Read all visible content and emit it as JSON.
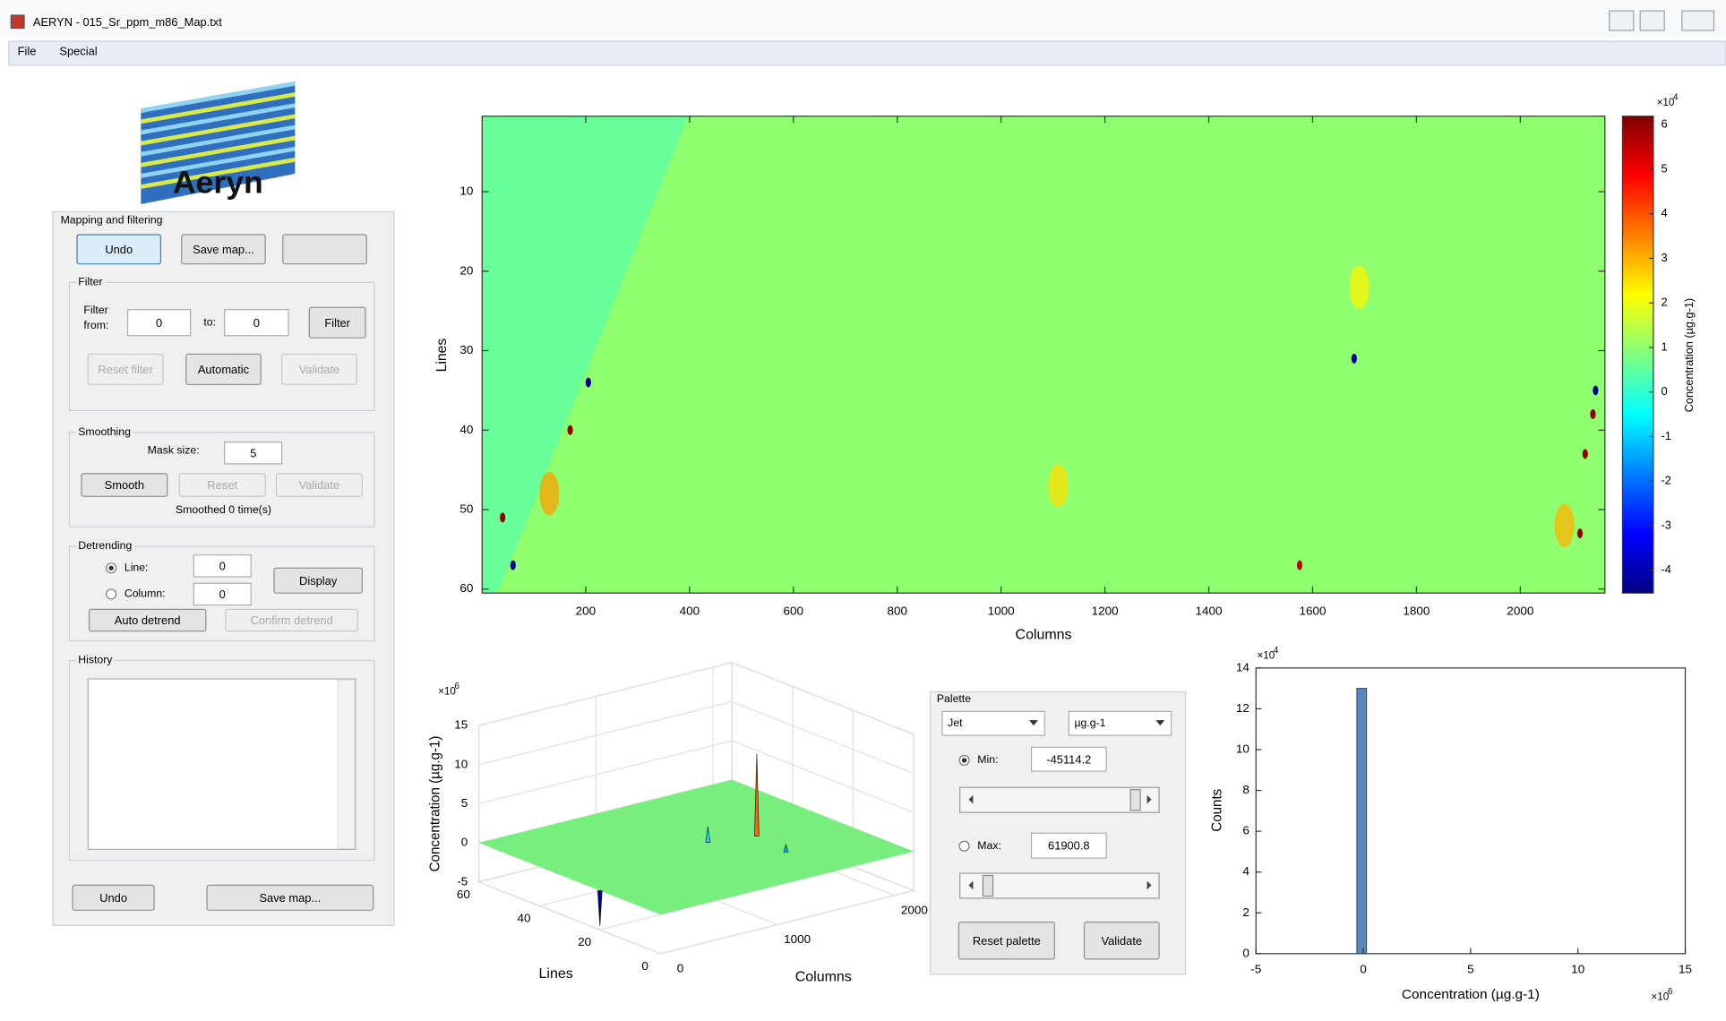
{
  "window": {
    "title": "AERYN - 015_Sr_ppm_m86_Map.txt"
  },
  "menu": [
    "File",
    "Special"
  ],
  "logo": "Aeryn",
  "mapping_panel": {
    "title": "Mapping and filtering",
    "buttons": [
      "Undo",
      "Save map..."
    ],
    "filter": {
      "title": "Filter",
      "from_label": [
        "Filter",
        "from:"
      ],
      "from_value": "0",
      "to_label": "to:",
      "to_value": "0",
      "filter_button": "Filter",
      "buttons": [
        "Reset filter",
        "Automatic",
        "Validate"
      ]
    },
    "smoothing": {
      "title": "Smoothing",
      "mask_label": "Mask size:",
      "mask_value": "5",
      "buttons": [
        "Smooth",
        "Reset",
        "Validate"
      ],
      "status": "Smoothed 0 time(s)"
    },
    "detrending": {
      "title": "Detrending",
      "line_label": "Line:",
      "line_value": "0",
      "column_label": "Column:",
      "column_value": "0",
      "display_button": "Display",
      "buttons": [
        "Auto detrend",
        "Confirm detrend"
      ]
    },
    "history": {
      "title": "History"
    }
  },
  "palette_panel": {
    "title": "Palette",
    "colormap": "Jet",
    "unit": "µg.g-1",
    "min_label": "Min:",
    "min_value": "-45114.2",
    "max_label": "Max:",
    "max_value": "61900.8",
    "buttons": [
      "Reset palette",
      "Validate"
    ]
  },
  "chart_data": [
    {
      "type": "heatmap",
      "x_label": "Columns",
      "y_label": "Lines",
      "xlim": [
        0.5,
        2163
      ],
      "xticks": [
        200,
        400,
        600,
        800,
        1000,
        1200,
        1400,
        1600,
        1800,
        2000
      ],
      "ylim": [
        0.5,
        60.5
      ],
      "yticks": [
        10,
        20,
        30,
        40,
        50,
        60
      ],
      "y_direction": "reverse",
      "colormap": "jet",
      "background_values": [
        1.0,
        0.5
      ],
      "spots": [
        {
          "column": 1110,
          "line": 47,
          "value": 2.5
        },
        {
          "column": 1690,
          "line": 22,
          "value": 2.3
        },
        {
          "column": 2085,
          "line": 52,
          "value": 3.0
        },
        {
          "column": 130,
          "line": 48,
          "value": 3.2
        },
        {
          "column": 1680,
          "line": 31,
          "value": -4.3
        },
        {
          "column": 205,
          "line": 34,
          "value": -4.3
        },
        {
          "column": 170,
          "line": 40,
          "value": 6.0
        },
        {
          "column": 2145,
          "line": 35,
          "value": -4.3
        },
        {
          "column": 2140,
          "line": 38,
          "value": 6.0
        },
        {
          "column": 2125,
          "line": 43,
          "value": 6.0
        },
        {
          "column": 40,
          "line": 51,
          "value": 6.0
        },
        {
          "column": 60,
          "line": 57,
          "value": -4.3
        },
        {
          "column": 1575,
          "line": 57,
          "value": 5.5
        },
        {
          "column": 2115,
          "line": 53,
          "value": 6.0
        }
      ],
      "clim": [
        -4.51142,
        6.19008
      ],
      "cticks": [
        -4,
        -3,
        -2,
        -1,
        0,
        1,
        2,
        3,
        4,
        5,
        6
      ],
      "colorbar_label": "Concentration (µg.g-1)",
      "colorbar_exponent": {
        "base": "×10",
        "power": "4"
      }
    },
    {
      "type": "surface3d",
      "x_label": "Columns",
      "y_label": "Lines",
      "z_label": "Concentration (µg.g-1)",
      "xlim": [
        0,
        2163
      ],
      "xticks": [
        0,
        1000,
        2000
      ],
      "ylim": [
        0,
        60
      ],
      "yticks": [
        0,
        20,
        40,
        60
      ],
      "zlim": [
        -5,
        15
      ],
      "zticks": [
        -5,
        0,
        5,
        10,
        15
      ],
      "z_exponent": {
        "base": "×10",
        "power": "6"
      },
      "surface_value": 0,
      "surface_color": "#78ee7e",
      "spikes": [
        {
          "column": 1547,
          "line": 28,
          "z": 10.5
        },
        {
          "column": 1207,
          "line": 31,
          "z": 2
        },
        {
          "column": 1486,
          "line": 16,
          "z": 1
        },
        {
          "column": 0,
          "line": 20,
          "z": -4.5
        }
      ]
    },
    {
      "type": "histogram",
      "x_label": "Concentration (µg.g-1)",
      "y_label": "Counts",
      "bins": [
        -0.3,
        0.15
      ],
      "counts": [
        13
      ],
      "color": "#5b87b8",
      "xlim": [
        -5,
        15
      ],
      "xticks": [
        -5,
        0,
        5,
        10,
        15
      ],
      "ylim": [
        0,
        14
      ],
      "yticks": [
        0,
        2,
        4,
        6,
        8,
        10,
        12,
        14
      ],
      "x_exponent": {
        "base": "×10",
        "power": "6"
      },
      "y_exponent": {
        "base": "×10",
        "power": "4"
      }
    }
  ]
}
